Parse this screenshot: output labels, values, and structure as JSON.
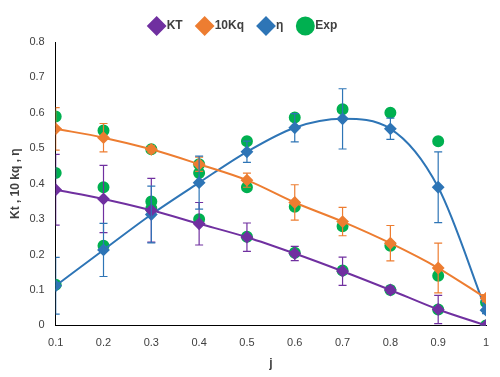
{
  "chart_data": {
    "type": "line",
    "x_label": "j",
    "y_label": "Kt , 10 kq , η",
    "x": [
      0.1,
      0.2,
      0.3,
      0.4,
      0.5,
      0.6,
      0.7,
      0.8,
      0.9,
      1
    ],
    "xlim": [
      0.1,
      1
    ],
    "xticks": [
      0.1,
      0.2,
      0.3,
      0.4,
      0.5,
      0.6,
      0.7,
      0.8,
      0.9,
      1
    ],
    "ylim": [
      0,
      0.8
    ],
    "yticks": [
      0,
      0.1,
      0.2,
      0.3,
      0.4,
      0.5,
      0.6,
      0.7,
      0.8
    ],
    "grid": false,
    "legend": "top",
    "series": [
      {
        "name": "KT",
        "color": "#7030a0",
        "marker": "diamond",
        "line_style": "smooth",
        "values": [
          0.383,
          0.357,
          0.325,
          0.287,
          0.249,
          0.203,
          0.153,
          0.1,
          0.045,
          0.0
        ],
        "errors": [
          0.1,
          0.095,
          0.09,
          0.06,
          0.04,
          0.02,
          0.04,
          0.01,
          0.04,
          0.0
        ]
      },
      {
        "name": "10Kq",
        "color": "#ed7d31",
        "marker": "diamond",
        "line_style": "smooth",
        "values": [
          0.555,
          0.53,
          0.497,
          0.455,
          0.41,
          0.347,
          0.293,
          0.232,
          0.162,
          0.077
        ],
        "errors": [
          0.06,
          0.04,
          0.01,
          0.02,
          0.02,
          0.05,
          0.04,
          0.05,
          0.07,
          0.01
        ]
      },
      {
        "name": "η",
        "color": "#2e75b6",
        "marker": "diamond",
        "line_style": "smooth",
        "values": [
          0.112,
          0.213,
          0.313,
          0.403,
          0.49,
          0.558,
          0.583,
          0.555,
          0.39,
          0.043
        ],
        "errors": [
          0.08,
          0.075,
          0.08,
          0.075,
          0.03,
          0.04,
          0.085,
          0.03,
          0.1,
          0.01
        ]
      },
      {
        "name": "Exp",
        "color": "#00b050",
        "marker": "circle",
        "type": "scatter",
        "x": [
          0.1,
          0.1,
          0.1,
          0.2,
          0.2,
          0.2,
          0.3,
          0.3,
          0.3,
          0.4,
          0.4,
          0.4,
          0.5,
          0.5,
          0.5,
          0.6,
          0.6,
          0.6,
          0.7,
          0.7,
          0.7,
          0.8,
          0.8,
          0.8,
          0.9,
          0.9,
          0.9,
          1,
          1
        ],
        "values": [
          0.59,
          0.43,
          0.115,
          0.55,
          0.39,
          0.225,
          0.497,
          0.35,
          0.33,
          0.455,
          0.43,
          0.3,
          0.52,
          0.39,
          0.25,
          0.587,
          0.335,
          0.205,
          0.61,
          0.28,
          0.155,
          0.6,
          0.225,
          0.1,
          0.52,
          0.14,
          0.045,
          0.065,
          0.0
        ]
      }
    ]
  }
}
